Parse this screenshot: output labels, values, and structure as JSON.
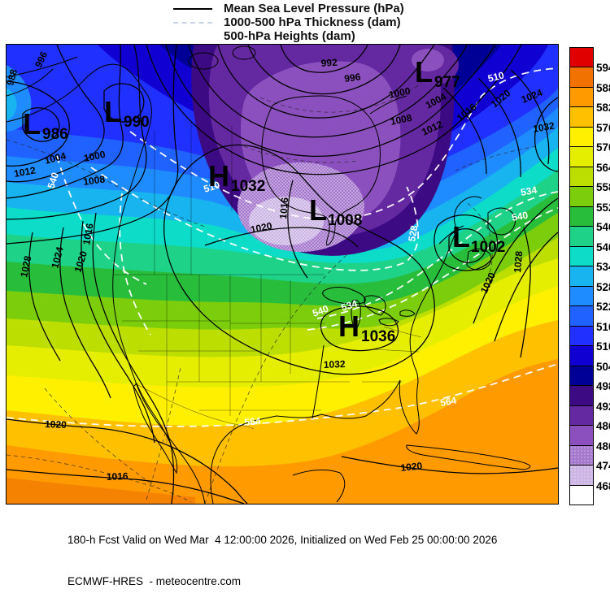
{
  "legend": {
    "items": [
      "Mean Sea Level Pressure (hPa)",
      "1000-500 hPa Thickness (dam)",
      "500-hPa Heights (dam)"
    ],
    "sample_colors": {
      "mslp": "#000000",
      "thickness": "#c7d2e2"
    }
  },
  "footer": {
    "line1": "180-h Fcst Valid on Wed Mar  4 12:00:00 2026, Initialized on Wed Feb 25 00:00:00 2026",
    "line2": "ECMWF-HRES  - meteocentre.com"
  },
  "colorbar": {
    "cells": [
      {
        "color": "#E10000",
        "label": "594"
      },
      {
        "color": "#F27200",
        "label": "588"
      },
      {
        "color": "#FF9A00",
        "label": "582"
      },
      {
        "color": "#FFC000",
        "label": "576"
      },
      {
        "color": "#FFF000",
        "label": "570"
      },
      {
        "color": "#E6EE00",
        "label": "564"
      },
      {
        "color": "#BCDE00",
        "label": "558"
      },
      {
        "color": "#7CCE0C",
        "label": "552"
      },
      {
        "color": "#28BE3C",
        "label": "546"
      },
      {
        "color": "#1ED288",
        "label": "540"
      },
      {
        "color": "#0CDCC8",
        "label": "534"
      },
      {
        "color": "#18B4F0",
        "label": "528"
      },
      {
        "color": "#1E8CFF",
        "label": "522"
      },
      {
        "color": "#2062FF",
        "label": "516"
      },
      {
        "color": "#2030FF",
        "label": "510"
      },
      {
        "color": "#1000D2",
        "label": "504"
      },
      {
        "color": "#000096",
        "label": "498"
      },
      {
        "color": "#3C0A82",
        "label": "492"
      },
      {
        "color": "#6428A0",
        "label": "486"
      },
      {
        "color": "#8C50BE",
        "label": "480"
      },
      {
        "color": "#A578CE",
        "label": "474",
        "stipple": true
      },
      {
        "color": "#CCB4E4",
        "label": "468",
        "stipple": true
      },
      {
        "color": "#FFFFFF",
        "label": ""
      }
    ]
  },
  "map": {
    "centers": [
      {
        "sym": "L",
        "val": "986"
      },
      {
        "sym": "L",
        "val": "990"
      },
      {
        "sym": "L",
        "val": "977"
      },
      {
        "sym": "H",
        "val": "1032"
      },
      {
        "sym": "L",
        "val": "1008"
      },
      {
        "sym": "L",
        "val": "1002"
      },
      {
        "sym": "H",
        "val": "1036"
      }
    ],
    "isobar_labels": [
      "988",
      "996",
      "992",
      "996",
      "1000",
      "1000",
      "1004",
      "1004",
      "1008",
      "1008",
      "1012",
      "1012",
      "1016",
      "1016",
      "1016",
      "1016",
      "1020",
      "1020",
      "1020",
      "1020",
      "1020",
      "1020",
      "1024",
      "1024",
      "1028",
      "1028",
      "1032",
      "1032"
    ],
    "thickness_labels": [
      "540",
      "510",
      "510",
      "528",
      "534",
      "534",
      "540",
      "540",
      "564",
      "564"
    ]
  }
}
